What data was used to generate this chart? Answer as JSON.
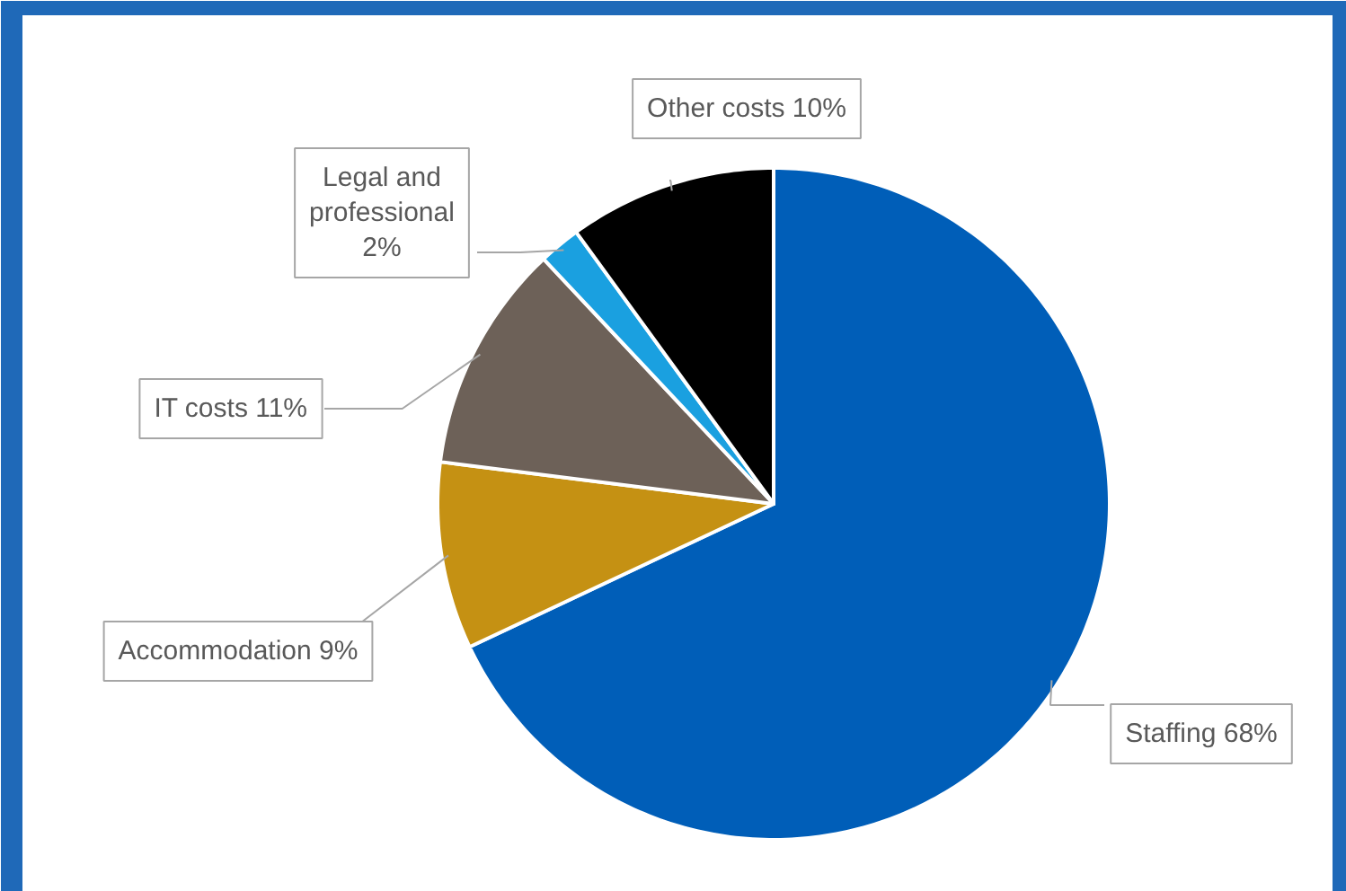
{
  "chart_data": {
    "type": "pie",
    "categories": [
      "Staffing",
      "Accommodation",
      "IT costs",
      "Legal and professional",
      "Other costs"
    ],
    "values": [
      68,
      9,
      11,
      2,
      10
    ],
    "value_labels": [
      "68%",
      "9%",
      "11%",
      "2%",
      "10%"
    ],
    "colors": [
      "#005eb8",
      "#c59113",
      "#6d6158",
      "#1aa0e0",
      "#000000"
    ]
  }
}
